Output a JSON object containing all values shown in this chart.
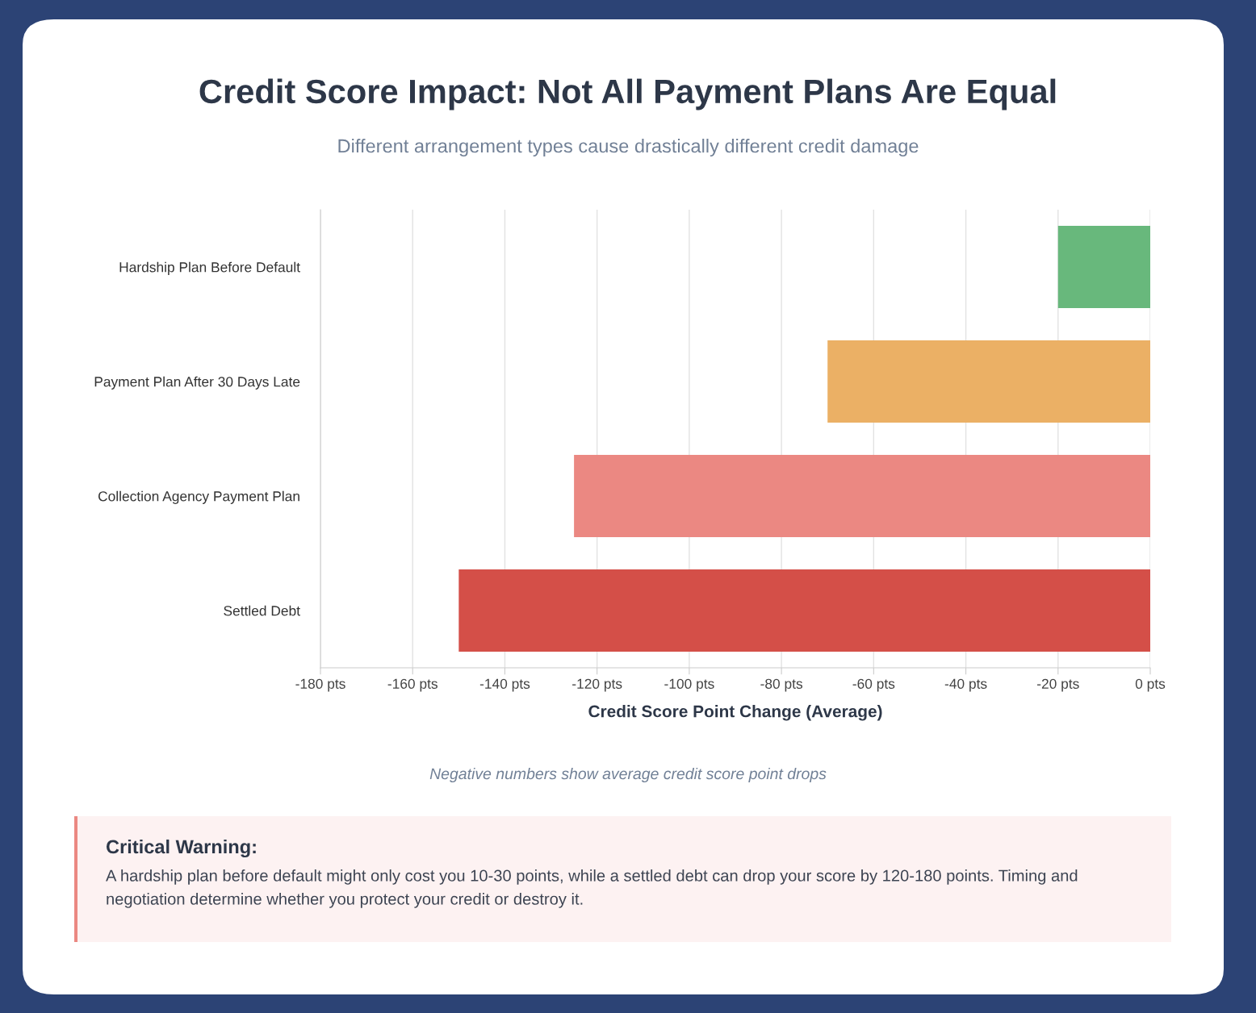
{
  "chart_data": {
    "type": "bar",
    "orientation": "horizontal",
    "title": "Credit Score Impact: Not All Payment Plans Are Equal",
    "subtitle": "Different arrangement types cause drastically different credit damage",
    "xlabel": "Credit Score Point Change (Average)",
    "categories": [
      "Hardship Plan Before Default",
      "Payment Plan After 30 Days Late",
      "Collection Agency Payment Plan",
      "Settled Debt"
    ],
    "values": [
      -20,
      -70,
      -125,
      -150
    ],
    "colors": [
      "#68b87c",
      "#ebb065",
      "#eb8882",
      "#d44f48"
    ],
    "xlim": [
      -180,
      0
    ],
    "xticks": [
      {
        "value": -180,
        "label": "-180 pts"
      },
      {
        "value": -160,
        "label": "-160 pts"
      },
      {
        "value": -140,
        "label": "-140 pts"
      },
      {
        "value": -120,
        "label": "-120 pts"
      },
      {
        "value": -100,
        "label": "-100 pts"
      },
      {
        "value": -80,
        "label": "-80 pts"
      },
      {
        "value": -60,
        "label": "-60 pts"
      },
      {
        "value": -40,
        "label": "-40 pts"
      },
      {
        "value": -20,
        "label": "-20 pts"
      },
      {
        "value": 0,
        "label": "0 pts"
      }
    ],
    "grid": "x",
    "legend": false,
    "annotations": [
      "Negative numbers show average credit score point drops",
      "Critical Warning:",
      "A hardship plan before default might only cost you 10-30 points, while a settled debt can drop your score by 120-180 points. Timing and negotiation determine whether you protect your credit or destroy it."
    ]
  }
}
